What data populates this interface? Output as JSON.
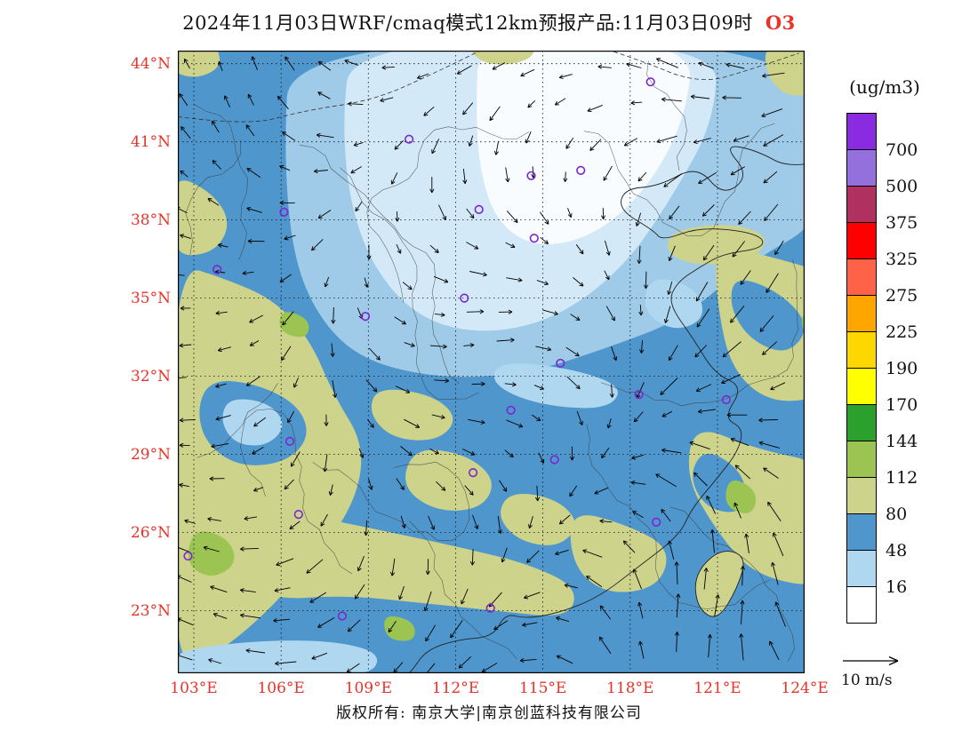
{
  "title": {
    "main": "2024年11月03日WRF/cmaq模式12km预报产品:11月03日09时",
    "species": "O3"
  },
  "axes": {
    "lat_labels": [
      "44°N",
      "41°N",
      "38°N",
      "35°N",
      "32°N",
      "29°N",
      "26°N",
      "23°N"
    ],
    "lat_values": [
      44,
      41,
      38,
      35,
      32,
      29,
      26,
      23
    ],
    "lon_labels": [
      "103°E",
      "106°E",
      "109°E",
      "112°E",
      "115°E",
      "118°E",
      "121°E",
      "124°E"
    ],
    "lon_values": [
      103,
      106,
      109,
      112,
      115,
      118,
      121,
      124
    ]
  },
  "colorbar": {
    "unit": "(ug/m3)",
    "segments": [
      {
        "color": "#8A2BE2",
        "label": "700"
      },
      {
        "color": "#9370DB",
        "label": "500"
      },
      {
        "color": "#B03060",
        "label": "375"
      },
      {
        "color": "#FF0000",
        "label": "325"
      },
      {
        "color": "#FF6347",
        "label": "275"
      },
      {
        "color": "#FFA500",
        "label": "225"
      },
      {
        "color": "#FFD700",
        "label": "190"
      },
      {
        "color": "#FFFF00",
        "label": "170"
      },
      {
        "color": "#2CA02C",
        "label": "144"
      },
      {
        "color": "#9CC452",
        "label": "112"
      },
      {
        "color": "#CDD38A",
        "label": "80"
      },
      {
        "color": "#4E96CC",
        "label": "48"
      },
      {
        "color": "#AFD7F0",
        "label": "16"
      },
      {
        "color": "#FFFFFF",
        "label": ""
      }
    ]
  },
  "wind_reference": {
    "label": "10 m/s"
  },
  "footer": {
    "text": "版权所有: 南京大学|南京创蓝科技有限公司"
  },
  "colors": {
    "axis_label": "#e8332a",
    "title_species": "#e8332a",
    "station_marker": "#7D26CD",
    "map_border": "#000000",
    "wind_vector": "#000000"
  }
}
